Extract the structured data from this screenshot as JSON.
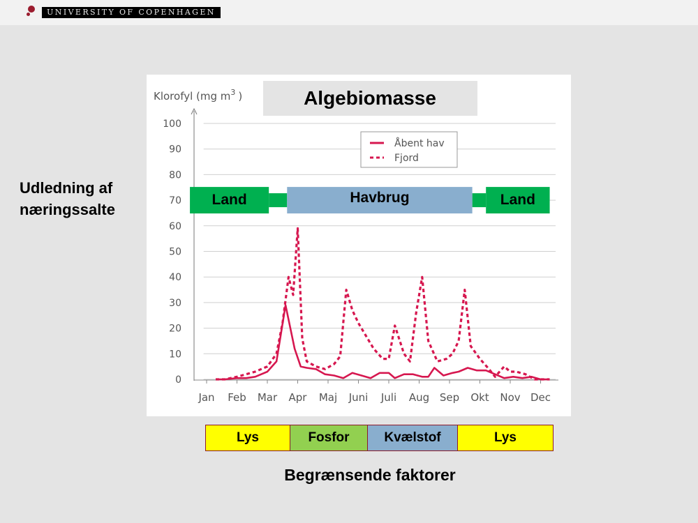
{
  "header": {
    "university": "UNIVERSITY OF COPENHAGEN",
    "brand_color": "#9b1c2e"
  },
  "side_label": "Udledning af næringssalte",
  "chart_data": {
    "type": "line",
    "title": "Algebiomasse",
    "ylabel_text": "Klorofyl (mg m",
    "ylabel_sup": "3",
    "ylabel_close": ")",
    "ylim": [
      0,
      100
    ],
    "yticks": [
      0,
      10,
      20,
      30,
      40,
      50,
      60,
      70,
      80,
      90,
      100
    ],
    "xlim": [
      0,
      11.5
    ],
    "xticks": [
      "Jan",
      "Feb",
      "Mar",
      "Apr",
      "Maj",
      "Juni",
      "Juli",
      "Aug",
      "Sep",
      "Okt",
      "Nov",
      "Dec"
    ],
    "grid": true,
    "legend_position": "top-right",
    "series": [
      {
        "name": "Åbent hav",
        "style": "solid",
        "color": "#d6174f",
        "x": [
          0.3,
          0.6,
          1.0,
          1.3,
          1.6,
          2.0,
          2.3,
          2.6,
          2.9,
          3.1,
          3.3,
          3.6,
          3.9,
          4.2,
          4.5,
          4.8,
          5.1,
          5.4,
          5.7,
          6.0,
          6.2,
          6.5,
          6.8,
          7.1,
          7.3,
          7.5,
          7.8,
          8.1,
          8.3,
          8.6,
          8.9,
          9.2,
          9.5,
          9.8,
          10.1,
          10.4,
          10.7,
          11.0,
          11.3
        ],
        "values": [
          0,
          0,
          0.5,
          0.5,
          1,
          3,
          7,
          29,
          12,
          5,
          4.5,
          4,
          2,
          1.5,
          0.5,
          2.5,
          1.5,
          0.5,
          2.5,
          2.5,
          0.5,
          2,
          2,
          1,
          1,
          4.5,
          1.5,
          2.5,
          3,
          4.5,
          3.5,
          3.5,
          2,
          0.5,
          1,
          0.5,
          1,
          0,
          0
        ]
      },
      {
        "name": "Fjord",
        "style": "dashed",
        "color": "#d6174f",
        "x": [
          0.3,
          0.6,
          1.0,
          1.3,
          1.6,
          2.0,
          2.3,
          2.5,
          2.7,
          2.85,
          3.0,
          3.15,
          3.3,
          3.6,
          3.9,
          4.2,
          4.4,
          4.6,
          4.8,
          5.0,
          5.3,
          5.5,
          5.8,
          6.0,
          6.2,
          6.5,
          6.7,
          6.9,
          7.1,
          7.3,
          7.6,
          7.9,
          8.1,
          8.3,
          8.5,
          8.7,
          9.0,
          9.3,
          9.5,
          9.8,
          10.0,
          10.2,
          10.5,
          10.8,
          11.0,
          11.3
        ],
        "values": [
          0,
          0,
          1,
          2,
          3,
          5,
          10,
          22,
          40,
          33,
          59,
          16,
          7,
          5,
          4,
          6,
          9,
          35,
          27,
          22,
          16,
          12,
          8,
          8,
          21,
          10,
          7,
          26,
          40,
          15,
          7,
          8,
          10,
          15,
          35,
          13,
          8,
          4,
          1,
          5,
          3,
          3,
          2,
          0,
          0,
          0
        ]
      }
    ],
    "annotations": [
      {
        "text": "Land",
        "x_start": -0.55,
        "x_end": 2.05,
        "band_x_end": 2.65,
        "value": 70,
        "color": "#00b050"
      },
      {
        "text": "Havbrug",
        "x_start": 2.65,
        "x_end": 8.75,
        "value": 70,
        "color": "#89aece"
      },
      {
        "text": "Land",
        "x_start": 9.2,
        "x_end": 11.3,
        "band_x_start": 8.75,
        "value": 70,
        "color": "#00b050"
      }
    ]
  },
  "limiting_factors": {
    "title": "Begrænsende faktorer",
    "segments": [
      {
        "label": "Lys",
        "color": "#ffff00"
      },
      {
        "label": "Fosfor",
        "color": "#92d050"
      },
      {
        "label": "Kvælstof",
        "color": "#89aece"
      },
      {
        "label": "Lys",
        "color": "#ffff00"
      }
    ]
  }
}
